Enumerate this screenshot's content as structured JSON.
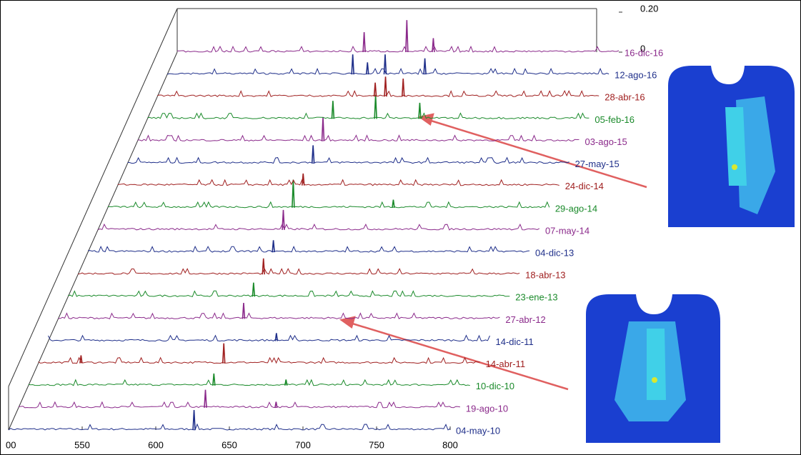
{
  "chart_data": {
    "type": "waterfall",
    "xlim": [
      500,
      800
    ],
    "xticks": [
      {
        "value": 500,
        "label": "00"
      },
      550,
      600,
      650,
      700,
      750,
      800
    ],
    "zlim": [
      0,
      0.2
    ],
    "zticks": [
      0,
      {
        "value": 0.2,
        "label": "0.20"
      }
    ],
    "series": [
      {
        "name": "04-may-10",
        "color": "#1f2f8a",
        "x": [
          626
        ],
        "values": [
          0.1
        ]
      },
      {
        "name": "19-ago-10",
        "color": "#8b2a8b",
        "x": [
          627,
          675
        ],
        "values": [
          0.09,
          0.03
        ]
      },
      {
        "name": "10-dic-10",
        "color": "#1a8a2a",
        "x": [
          626,
          675
        ],
        "values": [
          0.06,
          0.03
        ]
      },
      {
        "name": "14-abr-11",
        "color": "#a02020",
        "x": [
          529,
          626
        ],
        "values": [
          0.04,
          0.1
        ]
      },
      {
        "name": "14-dic-11",
        "color": "#1f2f8a",
        "x": [
          655
        ],
        "values": [
          0.04
        ]
      },
      {
        "name": "27-abr-12",
        "color": "#8b2a8b",
        "x": [
          626
        ],
        "values": [
          0.08
        ]
      },
      {
        "name": "23-ene-13",
        "color": "#1a8a2a",
        "x": [
          626
        ],
        "values": [
          0.07
        ]
      },
      {
        "name": "18-abr-13",
        "color": "#a02020",
        "x": [
          626
        ],
        "values": [
          0.08
        ]
      },
      {
        "name": "04-dic-13",
        "color": "#1f2f8a",
        "x": [
          626
        ],
        "values": [
          0.06
        ]
      },
      {
        "name": "07-may-14",
        "color": "#8b2a8b",
        "x": [
          626
        ],
        "values": [
          0.1
        ]
      },
      {
        "name": "29-ago-14",
        "color": "#1a8a2a",
        "x": [
          626,
          694
        ],
        "values": [
          0.14,
          0.04
        ]
      },
      {
        "name": "24-dic-14",
        "color": "#a02020",
        "x": [
          626
        ],
        "values": [
          0.06
        ]
      },
      {
        "name": "27-may-15",
        "color": "#1f2f8a",
        "x": [
          626
        ],
        "values": [
          0.09
        ]
      },
      {
        "name": "03-ago-15",
        "color": "#8b2a8b",
        "x": [
          626
        ],
        "values": [
          0.12
        ]
      },
      {
        "name": "05-feb-16",
        "color": "#1a8a2a",
        "x": [
          626,
          655,
          685
        ],
        "values": [
          0.09,
          0.12,
          0.08
        ]
      },
      {
        "name": "28-abr-16",
        "color": "#a02020",
        "x": [
          648,
          655,
          667
        ],
        "values": [
          0.07,
          0.1,
          0.09
        ]
      },
      {
        "name": "12-ago-16",
        "color": "#1f2f8a",
        "x": [
          626,
          636,
          648,
          675
        ],
        "values": [
          0.1,
          0.06,
          0.1,
          0.08
        ]
      },
      {
        "name": "16-dic-16",
        "color": "#8b2a8b",
        "x": [
          627,
          656,
          674
        ],
        "values": [
          0.1,
          0.16,
          0.07
        ]
      }
    ]
  }
}
